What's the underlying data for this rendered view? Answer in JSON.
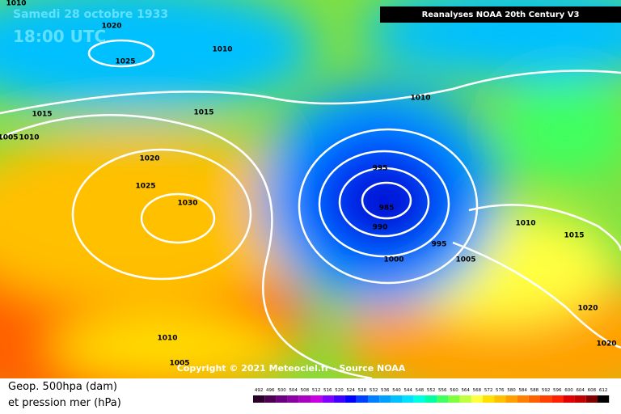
{
  "header": {
    "date": "Samedi 28 octobre 1933",
    "time": "18:00 UTC",
    "source": "Reanalyses NOAA 20th Century V3"
  },
  "copyright": "Copyright © 2021 Meteociel.fr - Source NOAA",
  "legend": {
    "title_line1": "Geop. 500hpa (dam)",
    "title_line2": "et pression mer (hPa)",
    "scale": [
      492,
      496,
      500,
      504,
      508,
      512,
      516,
      520,
      524,
      528,
      532,
      536,
      540,
      544,
      548,
      552,
      556,
      560,
      564,
      568,
      572,
      576,
      580,
      584,
      588,
      592,
      596,
      600,
      604,
      608,
      612
    ],
    "colors": [
      "#2a002a",
      "#4b0050",
      "#6a0080",
      "#8a00a0",
      "#aa00c0",
      "#c800e0",
      "#8000ff",
      "#4000ff",
      "#0000ff",
      "#0040ff",
      "#0080ff",
      "#00a0ff",
      "#00c0ff",
      "#00e0ff",
      "#00ffe0",
      "#00ffa0",
      "#40ff60",
      "#80ff40",
      "#c0ff40",
      "#ffff40",
      "#ffe000",
      "#ffc000",
      "#ffa000",
      "#ff8000",
      "#ff6000",
      "#ff4000",
      "#ff2000",
      "#e00000",
      "#c00000",
      "#800000",
      "#000000"
    ]
  },
  "isobar_labels": [
    "1010",
    "1020",
    "1025",
    "1010",
    "1015",
    "1005",
    "1010",
    "1015",
    "1020",
    "1025",
    "1030",
    "1010",
    "995",
    "985",
    "990",
    "995",
    "1000",
    "1005",
    "1010",
    "1015",
    "1020",
    "1020",
    "1010",
    "1005"
  ]
}
